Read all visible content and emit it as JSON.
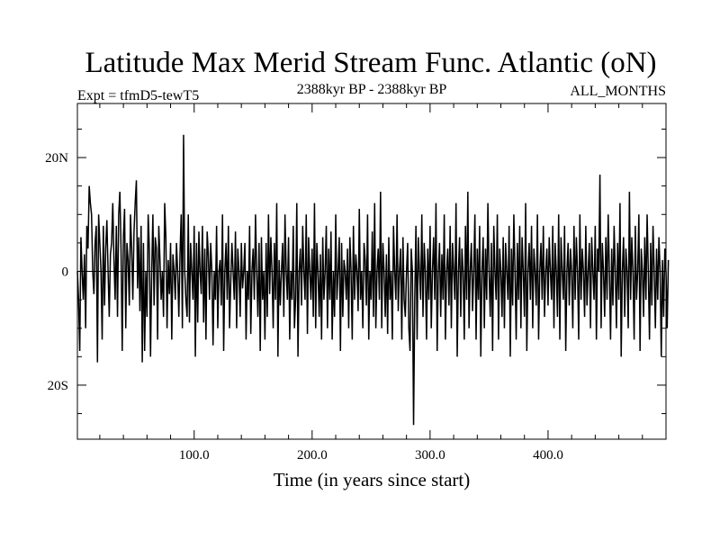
{
  "chart_data": {
    "type": "line",
    "title": "Latitude Max Merid Stream Func. Atlantic (oN)",
    "subtitle_left": "Expt = tfmD5-tewT5",
    "subtitle_center": "2388kyr BP - 2388kyr BP",
    "subtitle_right": "ALL_MONTHS",
    "xlabel": "Time (in years since start)",
    "ylabel": "",
    "xlim": [
      1,
      500
    ],
    "ylim": [
      -29.5,
      29.5
    ],
    "x_ticks": [
      {
        "value": 100,
        "label": "100.0"
      },
      {
        "value": 200,
        "label": "200.0"
      },
      {
        "value": 300,
        "label": "300.0"
      },
      {
        "value": 400,
        "label": "400.0"
      }
    ],
    "y_ticks": [
      {
        "value": 20,
        "label": "20N"
      },
      {
        "value": 0,
        "label": "0"
      },
      {
        "value": -20,
        "label": "20S"
      }
    ],
    "grid": false,
    "zero_line": true,
    "series": [
      {
        "color": "#000000",
        "x_start": 1,
        "x_step": 1,
        "values": [
          0,
          -5,
          -14,
          6,
          0,
          -5,
          3,
          -10,
          8,
          4,
          15,
          12,
          10,
          0,
          -4,
          5,
          8,
          -16,
          10,
          5,
          0,
          -12,
          8,
          -6,
          4,
          9,
          0,
          -8,
          3,
          5,
          12,
          2,
          -5,
          8,
          -8,
          10,
          14,
          4,
          -14,
          6,
          11,
          -10,
          5,
          2,
          -6,
          10,
          4,
          -5,
          7,
          12,
          16,
          -3,
          6,
          -7,
          8,
          -16,
          5,
          -14,
          0,
          -8,
          10,
          4,
          -15,
          0,
          10,
          -6,
          6,
          4,
          -12,
          8,
          2,
          -5,
          0,
          -8,
          12,
          6,
          -10,
          2,
          -4,
          5,
          -12,
          3,
          0,
          -5,
          5,
          0,
          -8,
          3,
          10,
          -10,
          24,
          0,
          -5,
          -8,
          10,
          -9,
          5,
          0,
          -5,
          8,
          -15,
          5,
          -9,
          7,
          0,
          -4,
          8,
          -9,
          4,
          -12,
          7,
          3,
          -5,
          5,
          0,
          -13,
          0,
          -5,
          8,
          -10,
          0,
          2,
          -6,
          10,
          -14,
          0,
          5,
          -5,
          8,
          -10,
          -2,
          5,
          0,
          -5,
          7,
          -10,
          4,
          0,
          -8,
          5,
          -3,
          0,
          5,
          -12,
          0,
          -5,
          8,
          -11,
          0,
          4,
          -5,
          10,
          0,
          -8,
          5,
          -14,
          6,
          -5,
          0,
          -12,
          5,
          -8,
          10,
          -4,
          6,
          0,
          -10,
          5,
          -5,
          12,
          -15,
          2,
          -6,
          0,
          5,
          -8,
          10,
          0,
          -5,
          6,
          -12,
          0,
          -5,
          8,
          -10,
          -5,
          12,
          -15,
          0,
          4,
          -6,
          8,
          0,
          -5,
          10,
          -11,
          6,
          0,
          -5,
          4,
          -8,
          12,
          -10,
          5,
          0,
          -8,
          3,
          -12,
          6,
          -5,
          0,
          8,
          -10,
          4,
          -5,
          7,
          -12,
          0,
          -8,
          10,
          -5,
          0,
          6,
          -14,
          5,
          -8,
          2,
          0,
          -5,
          4,
          -10,
          6,
          0,
          -12,
          8,
          -5,
          3,
          0,
          -7,
          11,
          -5,
          0,
          -10,
          5,
          2,
          -6,
          10,
          -12,
          0,
          -5,
          7,
          -8,
          12,
          -10,
          0,
          4,
          -5,
          14,
          -10,
          5,
          0,
          -8,
          3,
          -11,
          6,
          -5,
          0,
          -12,
          8,
          0,
          -5,
          10,
          -7,
          0,
          4,
          -12,
          6,
          -5,
          -8,
          0,
          5,
          -10,
          -14,
          4,
          0,
          -27,
          -5,
          8,
          -12,
          6,
          0,
          -5,
          10,
          -8,
          5,
          0,
          -12,
          4,
          -5,
          8,
          -10,
          0,
          6,
          -5,
          12,
          -14,
          0,
          5,
          -8,
          3,
          -5,
          10,
          -12,
          0,
          4,
          -6,
          8,
          -10,
          5,
          0,
          -5,
          12,
          -15,
          0,
          6,
          -8,
          4,
          0,
          -12,
          8,
          -5,
          14,
          -10,
          0,
          5,
          -7,
          0,
          10,
          -12,
          4,
          -5,
          8,
          -15,
          0,
          6,
          -10,
          4,
          -5,
          12,
          0,
          -8,
          5,
          -14,
          8,
          0,
          -5,
          10,
          -12,
          4,
          0,
          -8,
          6,
          -10,
          5,
          0,
          -5,
          8,
          -15,
          4,
          -6,
          10,
          0,
          -12,
          5,
          -5,
          8,
          -10,
          6,
          0,
          -8,
          12,
          -14,
          0,
          5,
          -5,
          8,
          -10,
          4,
          0,
          -6,
          10,
          -12,
          0,
          5,
          -5,
          8,
          -8,
          0,
          4,
          -6,
          6,
          0,
          -5,
          8,
          -10,
          5,
          0,
          -8,
          10,
          -12,
          6,
          0,
          -5,
          8,
          -14,
          0,
          5,
          -6,
          4,
          0,
          -10,
          8,
          -5,
          6,
          0,
          -12,
          10,
          -5,
          4,
          0,
          -8,
          8,
          -6,
          0,
          5,
          -10,
          6,
          0,
          -5,
          8,
          -12,
          4,
          0,
          17,
          -10,
          5,
          0,
          -8,
          6,
          -5,
          10,
          0,
          -12,
          4,
          -6,
          8,
          0,
          -10,
          5,
          -5,
          12,
          -15,
          0,
          6,
          -8,
          4,
          0,
          -10,
          14,
          -5,
          6,
          0,
          -12,
          8,
          -5,
          0,
          10,
          -14,
          4,
          0,
          -8,
          6,
          -5,
          10,
          0,
          -12,
          5,
          -6,
          8,
          0,
          -10,
          4,
          -5,
          6,
          0,
          -15,
          2,
          -8,
          4,
          0,
          -10,
          2
        ]
      }
    ]
  }
}
